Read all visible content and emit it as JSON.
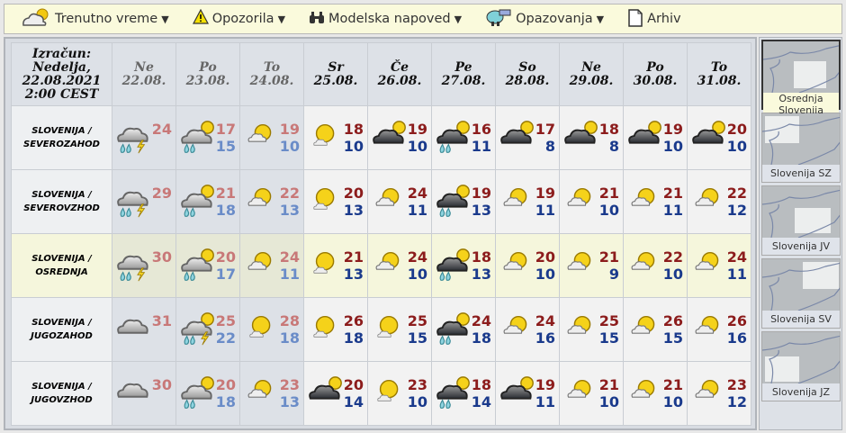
{
  "toolbar": [
    {
      "label": "Trenutno vreme",
      "icon": "cloud-sun-icon",
      "dropdown": true
    },
    {
      "label": "Opozorila",
      "icon": "warning-icon",
      "dropdown": true
    },
    {
      "label": "Modelska napoved",
      "icon": "binoculars-icon",
      "dropdown": true
    },
    {
      "label": "Opazovanja",
      "icon": "observer-icon",
      "dropdown": true
    },
    {
      "label": "Arhiv",
      "icon": "document-icon",
      "dropdown": false
    }
  ],
  "calc": {
    "l1": "Izračun:",
    "l2": "Nedelja,",
    "l3": "22.08.2021",
    "l4": "2:00 CEST"
  },
  "days": [
    {
      "name": "Ne",
      "date": "22.08.",
      "past": true
    },
    {
      "name": "Po",
      "date": "23.08.",
      "past": true
    },
    {
      "name": "To",
      "date": "24.08.",
      "past": true
    },
    {
      "name": "Sr",
      "date": "25.08."
    },
    {
      "name": "Če",
      "date": "26.08."
    },
    {
      "name": "Pe",
      "date": "27.08."
    },
    {
      "name": "So",
      "date": "28.08."
    },
    {
      "name": "Ne",
      "date": "29.08."
    },
    {
      "name": "Po",
      "date": "30.08."
    },
    {
      "name": "To",
      "date": "31.08."
    }
  ],
  "rows": [
    {
      "l1": "SLOVENIJA /",
      "l2": "SEVEROZAHOD",
      "cells": [
        [
          "rain-thunder",
          "24",
          ""
        ],
        [
          "rain-sun",
          "17",
          "15"
        ],
        [
          "partly-cloudy",
          "19",
          "10"
        ],
        [
          "mostly-sunny",
          "18",
          "10"
        ],
        [
          "dark-cloud-sun",
          "19",
          "10"
        ],
        [
          "dark-rain-sun",
          "16",
          "11"
        ],
        [
          "dark-cloud-sun",
          "17",
          "8"
        ],
        [
          "dark-cloud-sun",
          "18",
          "8"
        ],
        [
          "dark-cloud-sun",
          "19",
          "10"
        ],
        [
          "dark-cloud-sun",
          "20",
          "10"
        ]
      ]
    },
    {
      "l1": "SLOVENIJA /",
      "l2": "SEVEROVZHOD",
      "cells": [
        [
          "rain-thunder",
          "29",
          ""
        ],
        [
          "rain-sun",
          "21",
          "18"
        ],
        [
          "partly-cloudy",
          "22",
          "13"
        ],
        [
          "mostly-sunny",
          "20",
          "13"
        ],
        [
          "partly-cloudy",
          "24",
          "11"
        ],
        [
          "dark-rain-sun",
          "19",
          "13"
        ],
        [
          "partly-cloudy",
          "19",
          "11"
        ],
        [
          "partly-cloudy",
          "21",
          "10"
        ],
        [
          "partly-cloudy",
          "21",
          "11"
        ],
        [
          "partly-cloudy",
          "22",
          "12"
        ]
      ]
    },
    {
      "l1": "SLOVENIJA /",
      "l2": "OSREDNJA",
      "selected": true,
      "cells": [
        [
          "rain-thunder",
          "30",
          ""
        ],
        [
          "rain-sun",
          "20",
          "17"
        ],
        [
          "partly-cloudy",
          "24",
          "11"
        ],
        [
          "mostly-sunny",
          "21",
          "13"
        ],
        [
          "partly-cloudy",
          "24",
          "10"
        ],
        [
          "dark-rain-sun",
          "18",
          "13"
        ],
        [
          "partly-cloudy",
          "20",
          "10"
        ],
        [
          "partly-cloudy",
          "21",
          "9"
        ],
        [
          "partly-cloudy",
          "22",
          "10"
        ],
        [
          "partly-cloudy",
          "24",
          "11"
        ]
      ]
    },
    {
      "l1": "SLOVENIJA /",
      "l2": "JUGOZAHOD",
      "cells": [
        [
          "cloudy",
          "31",
          ""
        ],
        [
          "rain-thunder-sun",
          "25",
          "22"
        ],
        [
          "mostly-sunny",
          "28",
          "18"
        ],
        [
          "mostly-sunny",
          "26",
          "18"
        ],
        [
          "mostly-sunny",
          "25",
          "15"
        ],
        [
          "dark-rain-sun",
          "24",
          "18"
        ],
        [
          "partly-cloudy",
          "24",
          "16"
        ],
        [
          "partly-cloudy",
          "25",
          "15"
        ],
        [
          "partly-cloudy",
          "26",
          "15"
        ],
        [
          "partly-cloudy",
          "26",
          "16"
        ]
      ]
    },
    {
      "l1": "SLOVENIJA /",
      "l2": "JUGOVZHOD",
      "cells": [
        [
          "cloudy",
          "30",
          ""
        ],
        [
          "rain-sun",
          "20",
          "18"
        ],
        [
          "partly-cloudy",
          "23",
          "13"
        ],
        [
          "dark-cloud-sun",
          "20",
          "14"
        ],
        [
          "mostly-sunny",
          "23",
          "10"
        ],
        [
          "dark-rain-sun",
          "18",
          "14"
        ],
        [
          "dark-cloud-sun",
          "19",
          "11"
        ],
        [
          "partly-cloudy",
          "21",
          "10"
        ],
        [
          "partly-cloudy",
          "21",
          "10"
        ],
        [
          "partly-cloudy",
          "23",
          "12"
        ]
      ]
    }
  ],
  "regions": [
    {
      "l1": "Osrednja",
      "l2": "Slovenija",
      "selected": true,
      "area": "center"
    },
    {
      "l1": "Slovenija SZ",
      "area": "north-west"
    },
    {
      "l1": "Slovenija JV",
      "area": "south-east"
    },
    {
      "l1": "Slovenija SV",
      "area": "north-east"
    },
    {
      "l1": "Slovenija JZ",
      "area": "south-west"
    }
  ],
  "colors": {
    "toolbar_bg": "#fafadc",
    "past_max": "#c87878",
    "past_min": "#6a8cc8",
    "max": "#8c1c1c",
    "min": "#1a3a8c",
    "selected_row": "#f5f6dc"
  }
}
